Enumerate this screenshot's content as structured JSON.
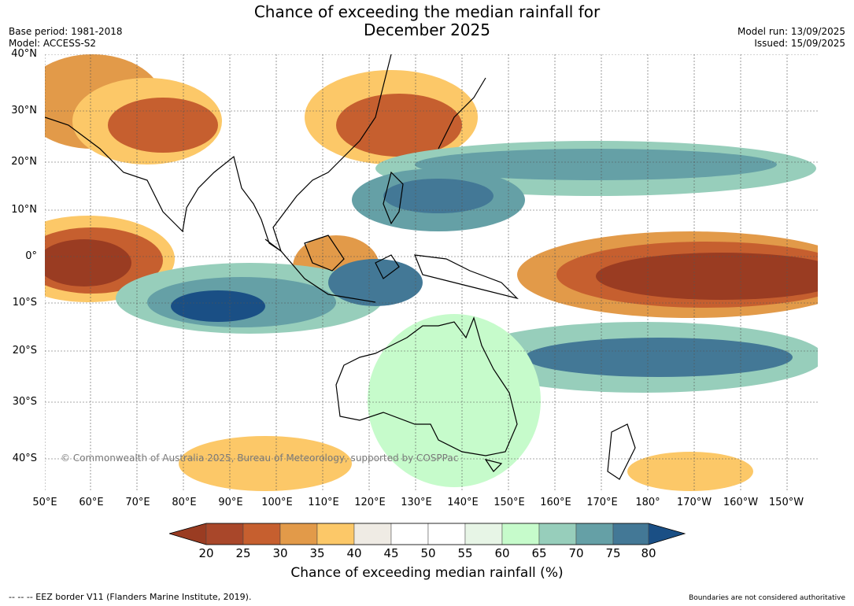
{
  "header": {
    "title_line1": "Chance of exceeding the median rainfall for",
    "title_line2": "December 2025",
    "base_period": "Base period: 1981-2018",
    "model": "Model: ACCESS-S2",
    "model_run": "Model run: 13/09/2025",
    "issued": "Issued: 15/09/2025"
  },
  "map": {
    "lat_labels": [
      "40°N",
      "30°N",
      "20°N",
      "10°N",
      "0°",
      "10°S",
      "20°S",
      "30°S",
      "40°S"
    ],
    "lon_labels": [
      "50°E",
      "60°E",
      "70°E",
      "80°E",
      "90°E",
      "100°E",
      "110°E",
      "120°E",
      "130°E",
      "140°E",
      "150°E",
      "160°E",
      "170°E",
      "180°",
      "170°W",
      "160°W",
      "150°W"
    ],
    "copyright": "© Commonwealth of Australia 2025, Bureau of Meteorology, supported by COSPPac"
  },
  "colorbar": {
    "ticks": [
      "20",
      "25",
      "30",
      "35",
      "40",
      "45",
      "50",
      "55",
      "60",
      "65",
      "70",
      "75",
      "80"
    ],
    "label": "Chance of exceeding median rainfall (%)",
    "colors": [
      "#9a3c22",
      "#a9472a",
      "#c65f2f",
      "#e29a49",
      "#fcc868",
      "#efebe4",
      "#ffffff",
      "#ffffff",
      "#e7f5e6",
      "#c6fbcb",
      "#97cebb",
      "#65a0a6",
      "#437896",
      "#1a4f85"
    ]
  },
  "footer": {
    "eez_note": "--  --  -- EEZ border V11 (Flanders Marine Institute, 2019).",
    "boundary_note": "Boundaries are not considered authoritative"
  }
}
